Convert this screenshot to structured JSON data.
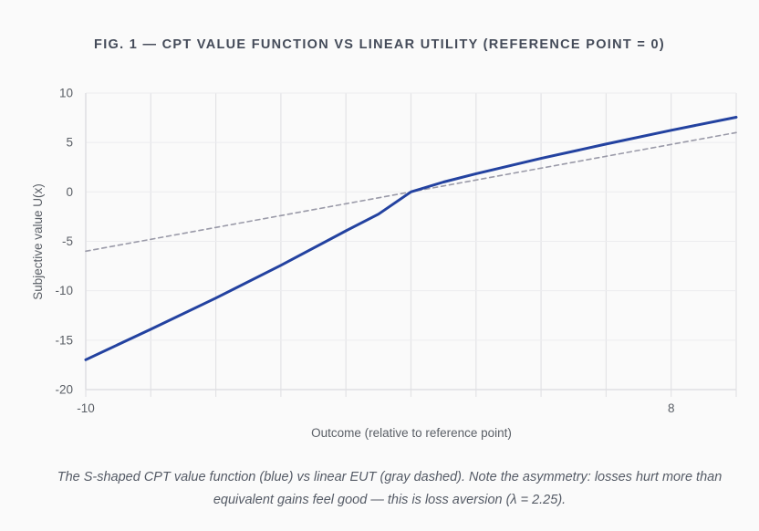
{
  "title": "FIG. 1 — CPT VALUE FUNCTION VS LINEAR UTILITY (REFERENCE POINT = 0)",
  "caption": "The S-shaped CPT value function (blue) vs linear EUT (gray dashed). Note the asymmetry: losses hurt more than equivalent gains feel good — this is loss aversion (λ = 2.25).",
  "chart_data": {
    "type": "line",
    "title": "FIG. 1 — CPT VALUE FUNCTION VS LINEAR UTILITY (REFERENCE POINT = 0)",
    "xlabel": "Outcome (relative to reference point)",
    "ylabel": "Subjective value U(x)",
    "xlim": [
      -10,
      10
    ],
    "ylim": [
      -20,
      10
    ],
    "x_ticks": [
      -10,
      8
    ],
    "y_ticks": [
      10,
      5,
      0,
      -5,
      -10,
      -15,
      -20
    ],
    "grid": true,
    "legend": "none",
    "x": [
      -10,
      -8,
      -6,
      -4,
      -2,
      -1,
      0,
      1,
      2,
      4,
      6,
      8,
      10
    ],
    "series": [
      {
        "style": "solid",
        "color": "#2342a0",
        "values": [
          -16.98,
          -13.9,
          -10.74,
          -7.43,
          -3.94,
          -2.25,
          0,
          1.0,
          1.84,
          3.39,
          4.84,
          6.23,
          7.55
        ]
      },
      {
        "style": "dashed",
        "color": "#9a9aa8",
        "values": [
          -6,
          -4.8,
          -3.6,
          -2.4,
          -1.2,
          -0.6,
          0,
          0.6,
          1.2,
          2.4,
          3.6,
          4.8,
          6
        ]
      }
    ]
  }
}
